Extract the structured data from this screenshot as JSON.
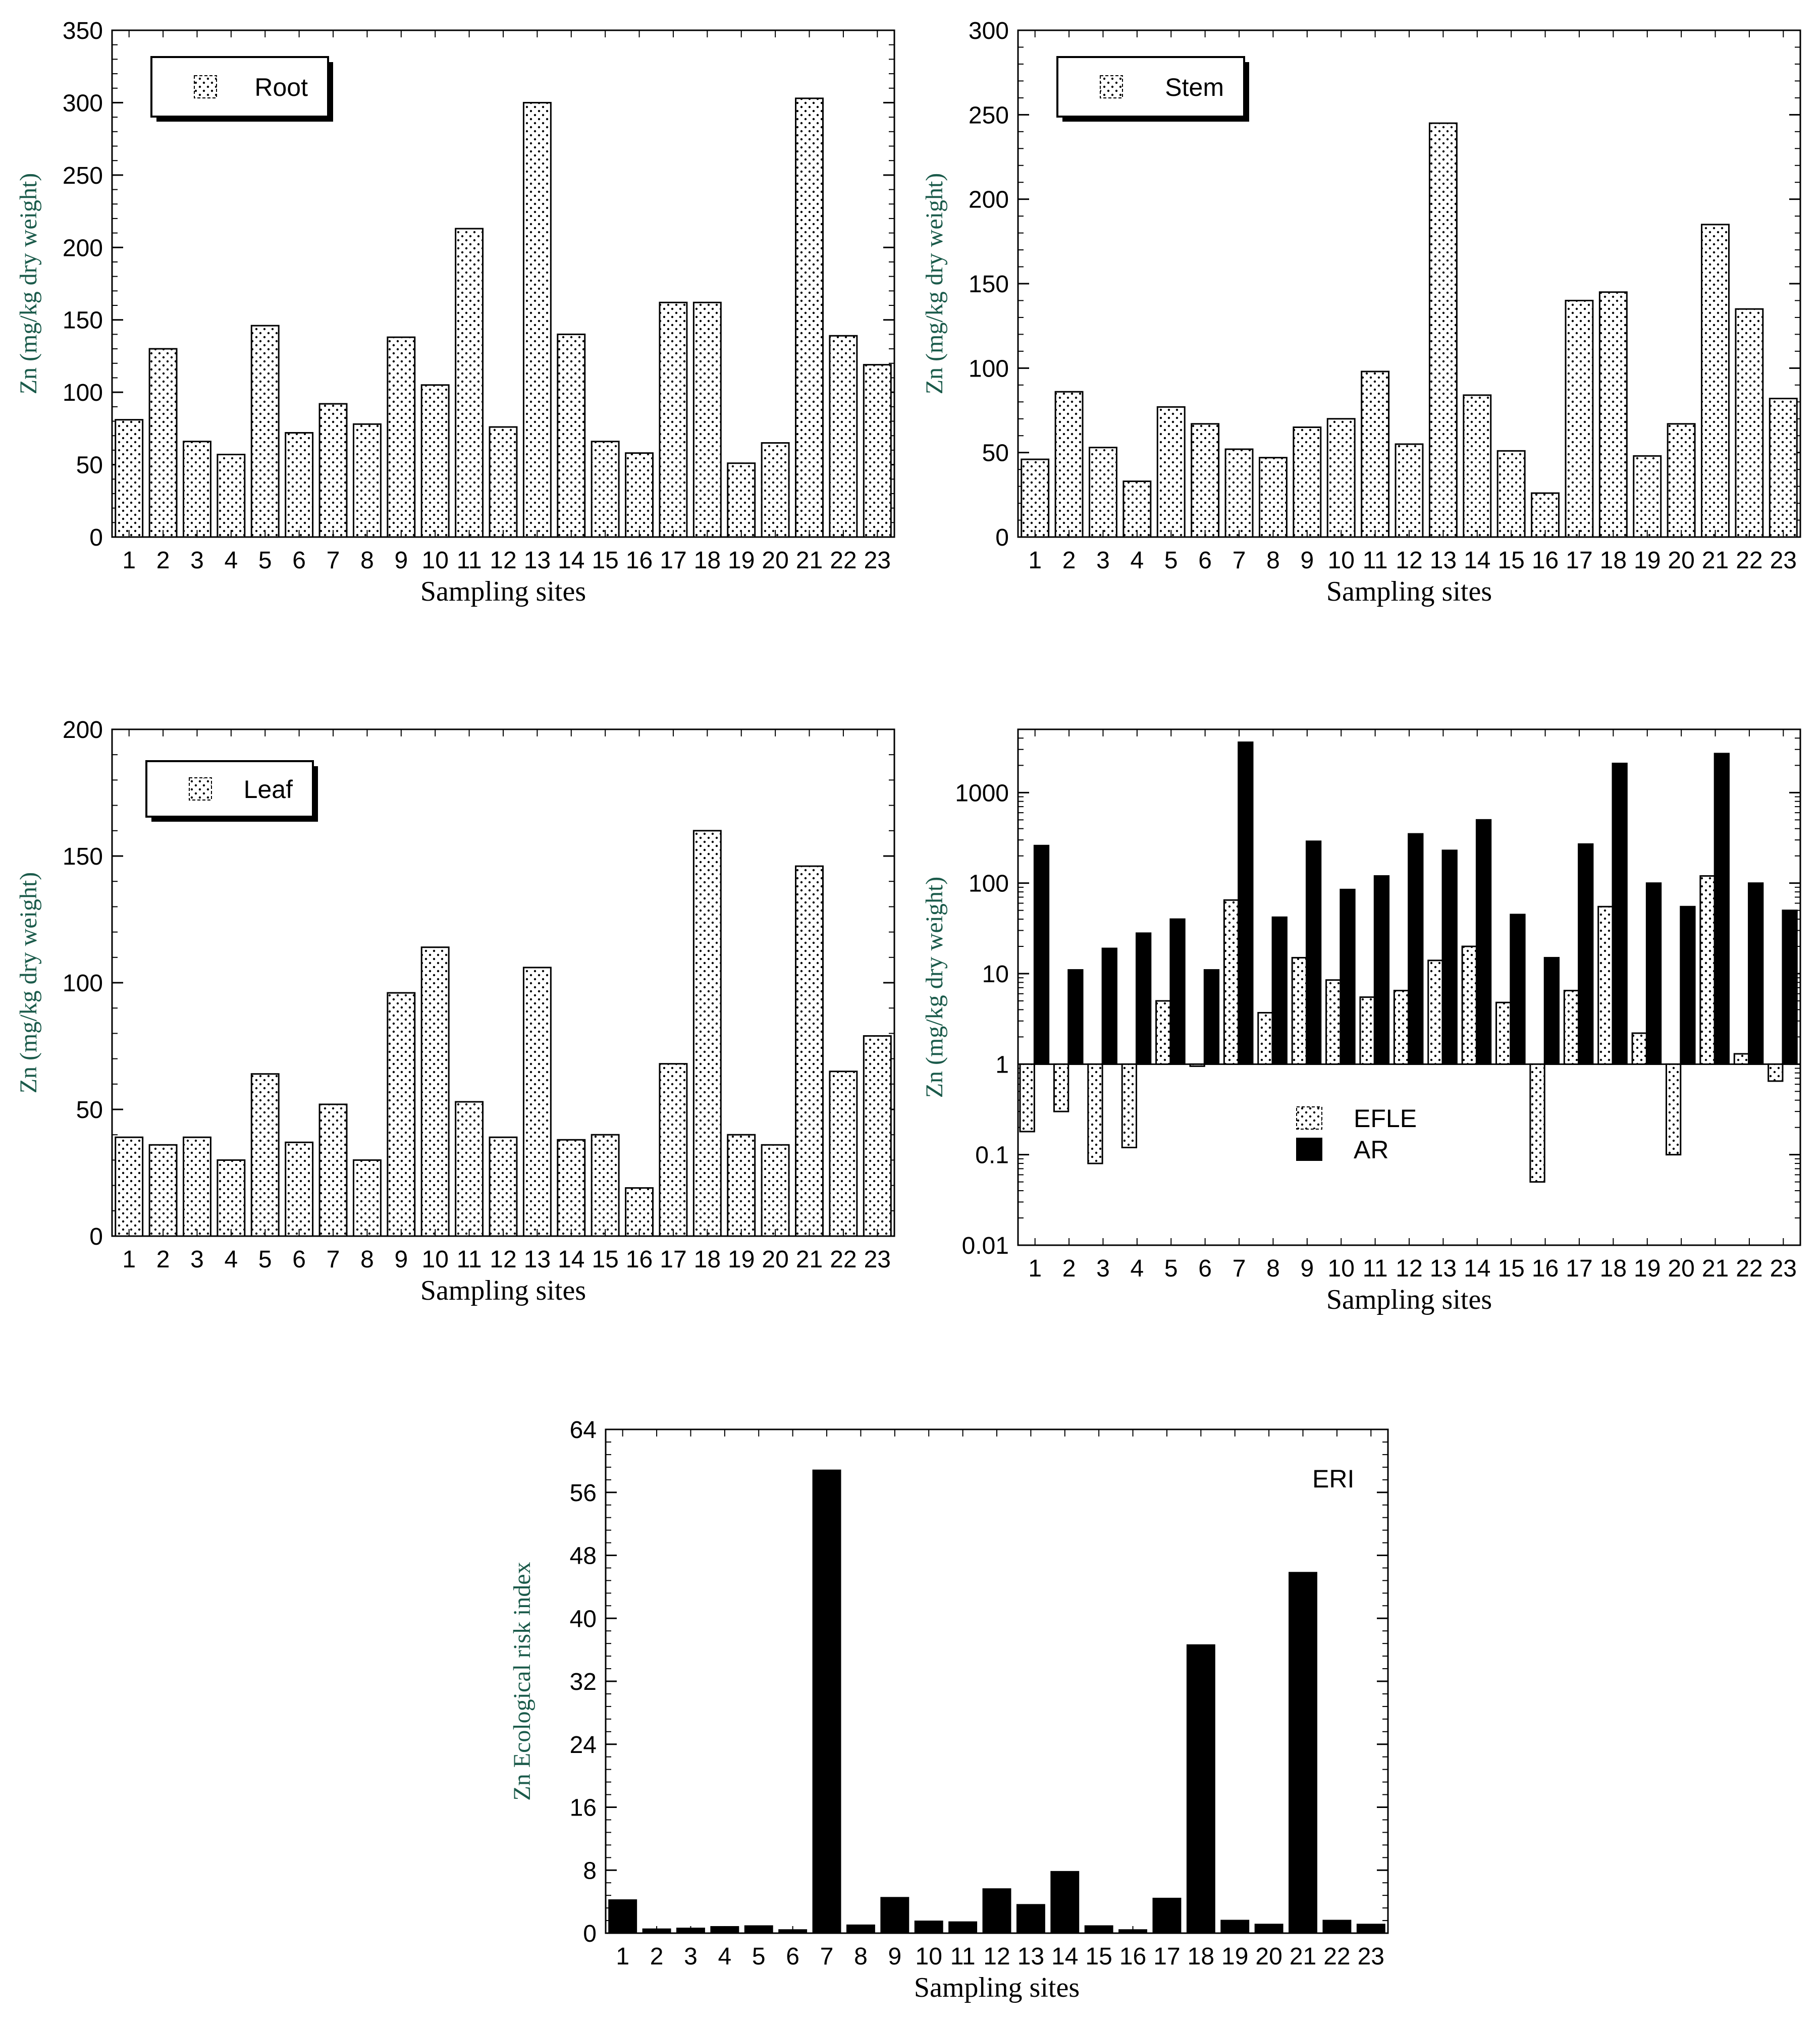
{
  "colors": {
    "ylabel": "#1a5a4a",
    "bar_solid": "#000000",
    "pattern_dot": "#000000"
  },
  "chart_data": [
    {
      "id": "root",
      "type": "bar",
      "scale": "linear",
      "categories": [
        "1",
        "2",
        "3",
        "4",
        "5",
        "6",
        "7",
        "8",
        "9",
        "10",
        "11",
        "12",
        "13",
        "14",
        "15",
        "16",
        "17",
        "18",
        "19",
        "20",
        "21",
        "22",
        "23"
      ],
      "series": [
        {
          "name": "Root",
          "pattern": "dots",
          "values": [
            81,
            130,
            66,
            57,
            146,
            72,
            92,
            78,
            138,
            105,
            213,
            76,
            300,
            140,
            66,
            58,
            162,
            162,
            51,
            65,
            303,
            139,
            119
          ]
        }
      ],
      "xlabel": "Sampling sites",
      "ylabel": "Zn (mg/kg dry weight)",
      "ylim": [
        0,
        350
      ],
      "yticks": [
        "0",
        "50",
        "100",
        "150",
        "200",
        "250",
        "300",
        "350"
      ],
      "ytick_values": [
        0,
        50,
        100,
        150,
        200,
        250,
        300,
        350
      ],
      "legend": {
        "position": "top-left",
        "entries": [
          {
            "label": "Root",
            "pattern": "dots"
          }
        ]
      }
    },
    {
      "id": "stem",
      "type": "bar",
      "scale": "linear",
      "categories": [
        "1",
        "2",
        "3",
        "4",
        "5",
        "6",
        "7",
        "8",
        "9",
        "10",
        "11",
        "12",
        "13",
        "14",
        "15",
        "16",
        "17",
        "18",
        "19",
        "20",
        "21",
        "22",
        "23"
      ],
      "series": [
        {
          "name": "Stem",
          "pattern": "dots",
          "values": [
            46,
            86,
            53,
            33,
            77,
            67,
            52,
            47,
            65,
            70,
            98,
            55,
            245,
            84,
            51,
            26,
            140,
            145,
            48,
            67,
            185,
            135,
            82
          ]
        }
      ],
      "xlabel": "Sampling sites",
      "ylabel": "Zn (mg/kg dry weight)",
      "ylim": [
        0,
        300
      ],
      "yticks": [
        "0",
        "50",
        "100",
        "150",
        "200",
        "250",
        "300"
      ],
      "ytick_values": [
        0,
        50,
        100,
        150,
        200,
        250,
        300
      ],
      "legend": {
        "position": "top-left",
        "entries": [
          {
            "label": "Stem",
            "pattern": "dots"
          }
        ]
      }
    },
    {
      "id": "leaf",
      "type": "bar",
      "scale": "linear",
      "categories": [
        "1",
        "2",
        "3",
        "4",
        "5",
        "6",
        "7",
        "8",
        "9",
        "10",
        "11",
        "12",
        "13",
        "14",
        "15",
        "16",
        "17",
        "18",
        "19",
        "20",
        "21",
        "22",
        "23"
      ],
      "series": [
        {
          "name": "Leaf",
          "pattern": "dots",
          "values": [
            39,
            36,
            39,
            30,
            64,
            37,
            52,
            30,
            96,
            114,
            53,
            39,
            106,
            38,
            40,
            19,
            68,
            160,
            40,
            36,
            146,
            65,
            79
          ]
        }
      ],
      "xlabel": "Sampling sites",
      "ylabel": "Zn (mg/kg dry weight)",
      "ylim": [
        0,
        200
      ],
      "yticks": [
        "0",
        "50",
        "100",
        "150",
        "200"
      ],
      "ytick_values": [
        0,
        50,
        100,
        150,
        200
      ],
      "legend": {
        "position": "top-left",
        "entries": [
          {
            "label": "Leaf",
            "pattern": "dots"
          }
        ]
      }
    },
    {
      "id": "efle_ar",
      "type": "bar",
      "scale": "log",
      "baseline": 1,
      "categories": [
        "1",
        "2",
        "3",
        "4",
        "5",
        "6",
        "7",
        "8",
        "9",
        "10",
        "11",
        "12",
        "13",
        "14",
        "15",
        "16",
        "17",
        "18",
        "19",
        "20",
        "21",
        "22",
        "23"
      ],
      "series": [
        {
          "name": "EFLE",
          "pattern": "dots",
          "values": [
            0.18,
            0.3,
            0.08,
            0.12,
            5,
            0.95,
            65,
            3.7,
            15,
            8.5,
            5.5,
            6.5,
            14,
            20,
            4.8,
            0.05,
            6.5,
            55,
            2.2,
            0.1,
            120,
            1.3,
            0.65
          ]
        },
        {
          "name": "AR",
          "pattern": "solid",
          "values": [
            260,
            11,
            19,
            28,
            40,
            11,
            3600,
            42,
            290,
            85,
            120,
            350,
            230,
            500,
            45,
            15,
            270,
            2100,
            100,
            55,
            2700,
            100,
            50
          ]
        }
      ],
      "xlabel": "Sampling sites",
      "ylabel": "Zn (mg/kg dry weight)",
      "ylim": [
        0.01,
        5000
      ],
      "yticks": [
        "0.01",
        "0.1",
        "1",
        "10",
        "100",
        "1000"
      ],
      "ytick_values": [
        0.01,
        0.1,
        1,
        10,
        100,
        1000
      ],
      "legend": {
        "position": "center-left",
        "entries": [
          {
            "label": "EFLE",
            "pattern": "dots"
          },
          {
            "label": "AR",
            "pattern": "solid"
          }
        ]
      }
    },
    {
      "id": "eri",
      "type": "bar",
      "scale": "linear",
      "categories": [
        "1",
        "2",
        "3",
        "4",
        "5",
        "6",
        "7",
        "8",
        "9",
        "10",
        "11",
        "12",
        "13",
        "14",
        "15",
        "16",
        "17",
        "18",
        "19",
        "20",
        "21",
        "22",
        "23"
      ],
      "series": [
        {
          "name": "ERI",
          "pattern": "solid",
          "values": [
            4.2,
            0.5,
            0.6,
            0.8,
            0.9,
            0.4,
            58.8,
            1.0,
            4.5,
            1.5,
            1.4,
            5.6,
            3.6,
            7.8,
            0.9,
            0.4,
            4.4,
            36.6,
            1.6,
            1.1,
            45.8,
            1.6,
            1.1
          ]
        }
      ],
      "xlabel": "Sampling sites",
      "ylabel": "Zn Ecological risk index",
      "ylim": [
        0,
        64
      ],
      "yticks": [
        "0",
        "8",
        "16",
        "24",
        "32",
        "40",
        "48",
        "56",
        "64"
      ],
      "ytick_values": [
        0,
        8,
        16,
        24,
        32,
        40,
        48,
        56,
        64
      ],
      "legend": {
        "position": "top-right",
        "entries": [
          {
            "label": "ERI",
            "pattern": "none"
          }
        ]
      }
    }
  ]
}
